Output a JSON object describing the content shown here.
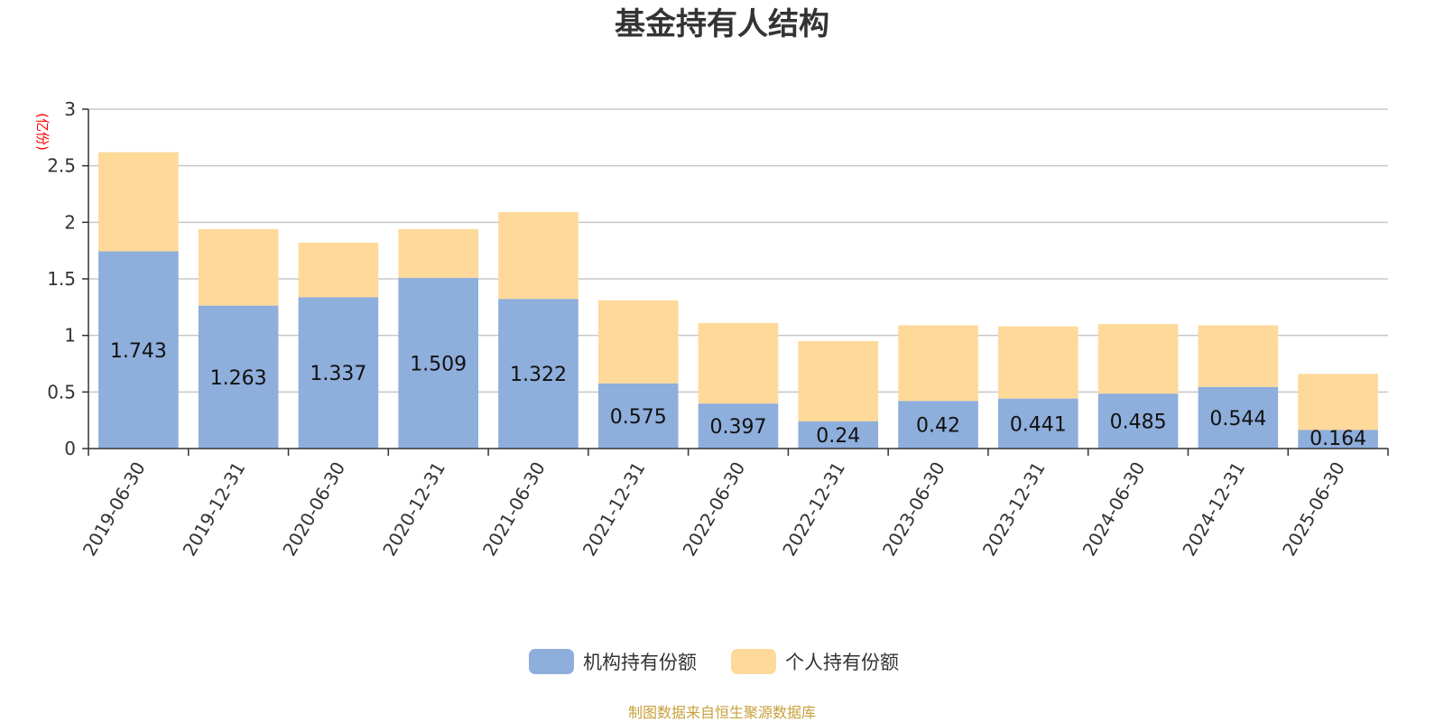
{
  "chart_data": {
    "type": "bar",
    "stacked": true,
    "title": "基金持有人结构",
    "unit_label": "(亿份)",
    "source_note": "制图数据来自恒生聚源数据库",
    "categories": [
      "2019-06-30",
      "2019-12-31",
      "2020-06-30",
      "2020-12-31",
      "2021-06-30",
      "2021-12-31",
      "2022-06-30",
      "2022-12-31",
      "2023-06-30",
      "2023-12-31",
      "2024-06-30",
      "2024-12-31",
      "2025-06-30"
    ],
    "ylim": [
      0,
      3
    ],
    "yticks": [
      "0",
      "0.5",
      "1",
      "1.5",
      "2",
      "2.5",
      "3"
    ],
    "grid": true,
    "legend_position": "bottom-center",
    "series": [
      {
        "name": "机构持有份额",
        "color": "#8eaedc",
        "values": [
          1.743,
          1.263,
          1.337,
          1.509,
          1.322,
          0.575,
          0.397,
          0.24,
          0.42,
          0.441,
          0.485,
          0.544,
          0.164
        ],
        "labels": [
          "1.743",
          "1.263",
          "1.337",
          "1.509",
          "1.322",
          "0.575",
          "0.397",
          "0.24",
          "0.42",
          "0.441",
          "0.485",
          "0.544",
          "0.164"
        ]
      },
      {
        "name": "个人持有份额",
        "color": "#fed99a",
        "values": [
          0.877,
          0.677,
          0.483,
          0.431,
          0.768,
          0.735,
          0.713,
          0.71,
          0.67,
          0.639,
          0.615,
          0.546,
          0.496
        ]
      }
    ]
  }
}
